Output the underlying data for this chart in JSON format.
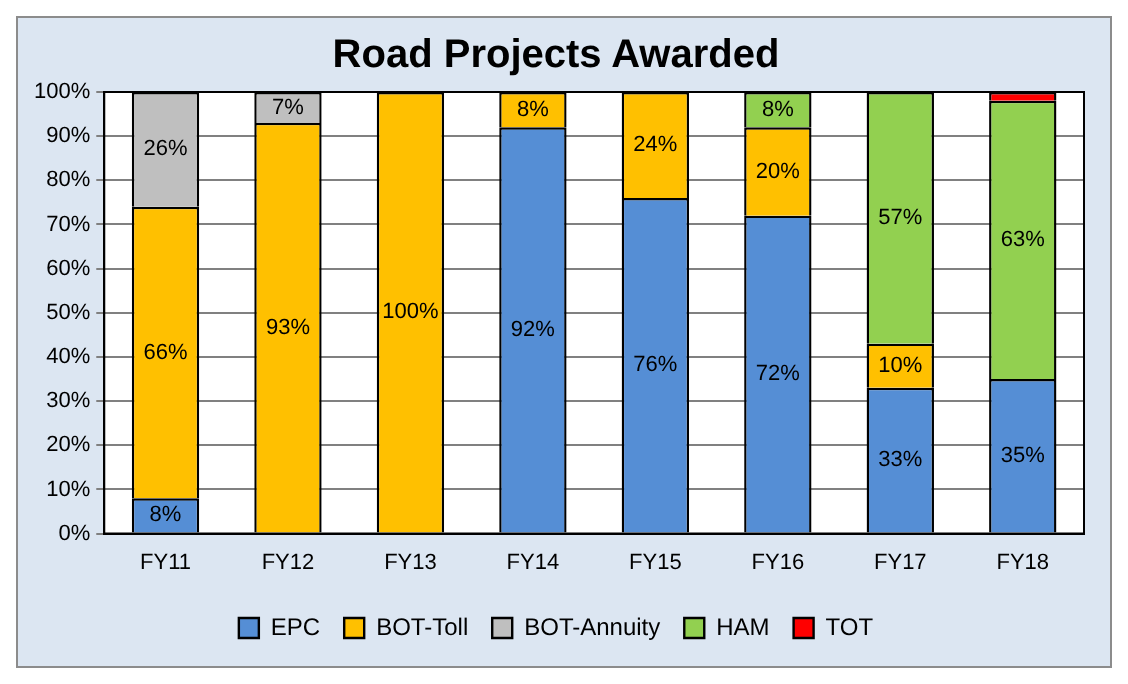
{
  "chart_data": {
    "type": "bar",
    "title": "Road Projects Awarded",
    "stacked": true,
    "categories": [
      "FY11",
      "FY12",
      "FY13",
      "FY14",
      "FY15",
      "FY16",
      "FY17",
      "FY18"
    ],
    "series": [
      {
        "name": "EPC",
        "color": "#558ed5",
        "values": [
          8,
          0,
          0,
          92,
          76,
          72,
          33,
          35
        ],
        "value_labels": [
          "8%",
          null,
          null,
          "92%",
          "76%",
          "72%",
          "33%",
          "35%"
        ]
      },
      {
        "name": "BOT-Toll",
        "color": "#ffc000",
        "values": [
          66,
          93,
          100,
          8,
          24,
          20,
          10,
          0
        ],
        "value_labels": [
          "66%",
          "93%",
          "100%",
          "8%",
          "24%",
          "20%",
          "10%",
          null
        ]
      },
      {
        "name": "BOT-Annuity",
        "color": "#bfbfbf",
        "values": [
          26,
          7,
          0,
          0,
          0,
          0,
          0,
          0
        ],
        "value_labels": [
          "26%",
          "7%",
          null,
          null,
          null,
          null,
          null,
          null
        ]
      },
      {
        "name": "HAM",
        "color": "#92d050",
        "values": [
          0,
          0,
          0,
          0,
          0,
          8,
          57,
          63
        ],
        "value_labels": [
          null,
          null,
          null,
          null,
          null,
          "8%",
          "57%",
          "63%"
        ]
      },
      {
        "name": "TOT",
        "color": "#ff0000",
        "values": [
          0,
          0,
          0,
          0,
          0,
          0,
          0,
          2
        ],
        "value_labels": [
          null,
          null,
          null,
          null,
          null,
          null,
          null,
          null
        ]
      }
    ],
    "ylim": [
      0,
      100
    ],
    "yticks": [
      {
        "value": 0,
        "label": "0%"
      },
      {
        "value": 10,
        "label": "10%"
      },
      {
        "value": 20,
        "label": "20%"
      },
      {
        "value": 30,
        "label": "30%"
      },
      {
        "value": 40,
        "label": "40%"
      },
      {
        "value": 50,
        "label": "50%"
      },
      {
        "value": 60,
        "label": "60%"
      },
      {
        "value": 70,
        "label": "70%"
      },
      {
        "value": 80,
        "label": "80%"
      },
      {
        "value": 90,
        "label": "90%"
      },
      {
        "value": 100,
        "label": "100%"
      }
    ],
    "grid": "y",
    "legend": "bottom"
  }
}
